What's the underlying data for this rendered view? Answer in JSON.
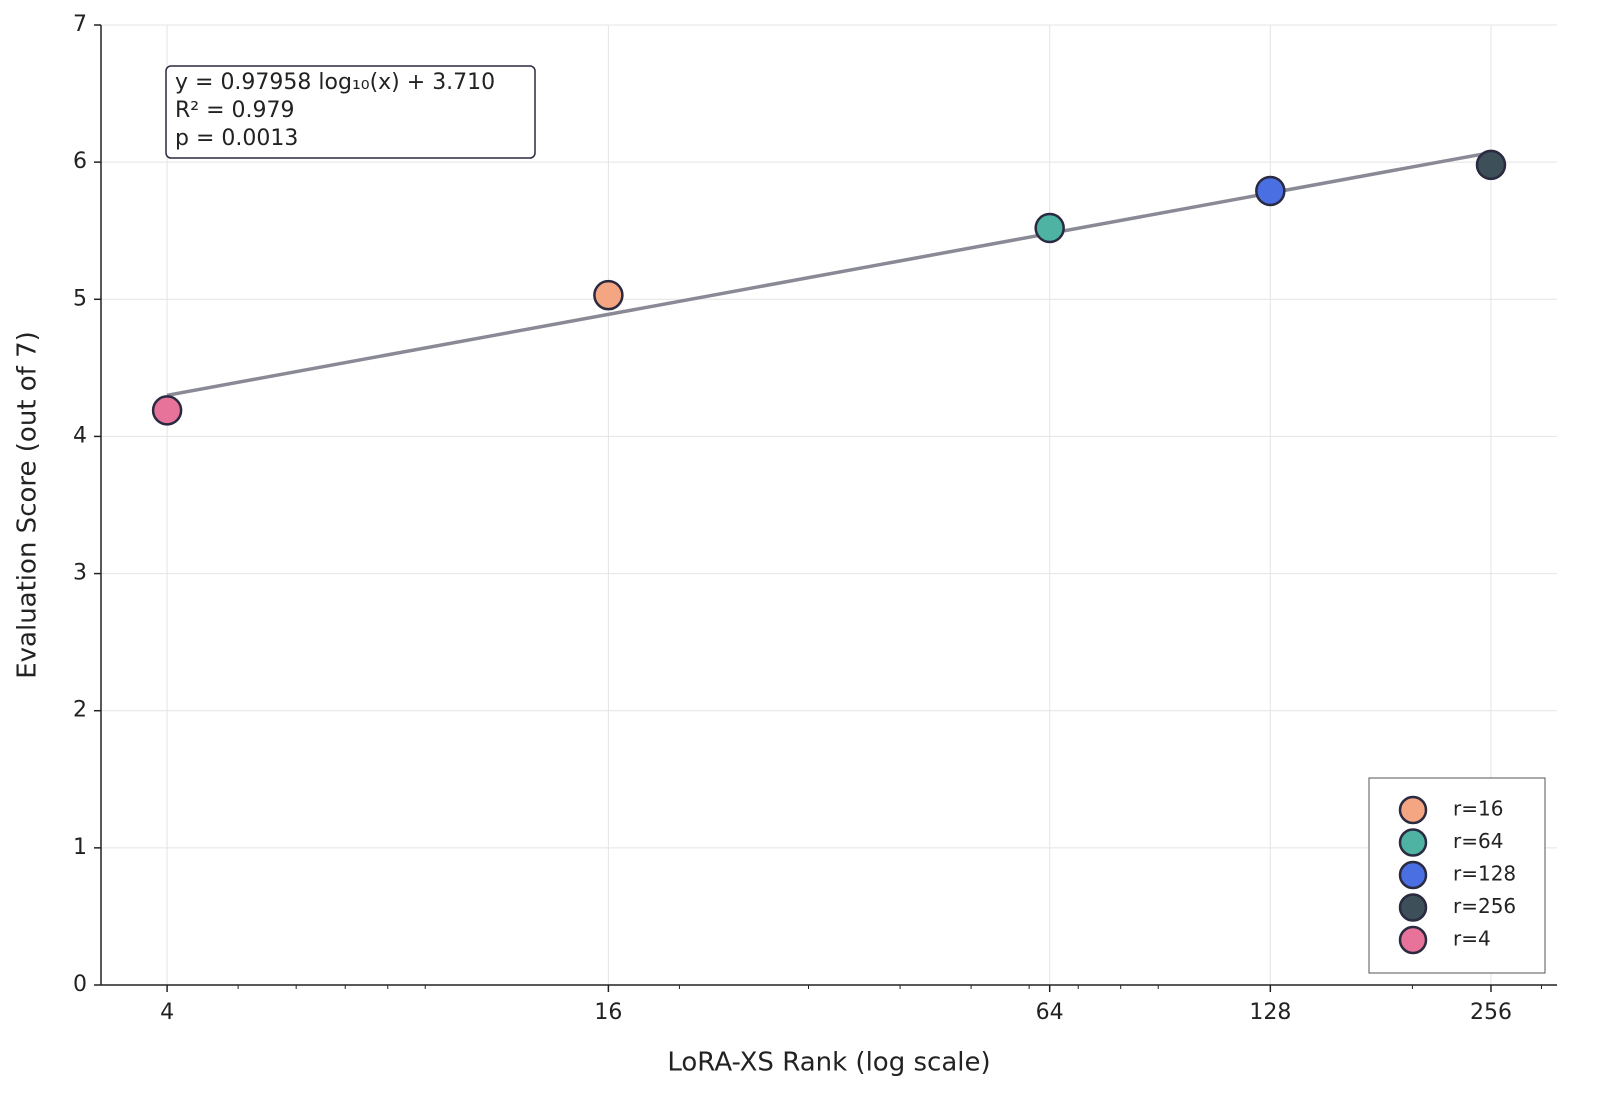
{
  "chart_data": {
    "type": "scatter",
    "xlabel": "LoRA-XS Rank (log scale)",
    "ylabel": "Evaluation Score (out of 7)",
    "xscale": "log",
    "xlim": [
      3.25,
      315
    ],
    "ylim": [
      0,
      7
    ],
    "xticks": [
      4,
      16,
      64,
      128,
      256
    ],
    "xminorticks": [
      5,
      6,
      7,
      8,
      9,
      20,
      30,
      40,
      50,
      60,
      70,
      80,
      90,
      200,
      300
    ],
    "yticks": [
      0,
      1,
      2,
      3,
      4,
      5,
      6,
      7
    ],
    "grid": true,
    "legend": "lower right",
    "annotation": [
      "y = 0.97958 log₁₀(x) + 3.710",
      "R² = 0.979",
      "p = 0.0013"
    ],
    "fit_line": {
      "x": [
        4,
        256
      ],
      "values": [
        4.3,
        6.07
      ],
      "color": "#8a8a96"
    },
    "series": [
      {
        "name": "r=16",
        "color": "#f4a582",
        "x": [
          16
        ],
        "values": [
          5.03
        ]
      },
      {
        "name": "r=64",
        "color": "#4fb3a4",
        "x": [
          64
        ],
        "values": [
          5.52
        ]
      },
      {
        "name": "r=128",
        "color": "#4a6fe3",
        "x": [
          128
        ],
        "values": [
          5.79
        ]
      },
      {
        "name": "r=256",
        "color": "#3d4f58",
        "x": [
          256
        ],
        "values": [
          5.98
        ]
      },
      {
        "name": "r=4",
        "color": "#e8739a",
        "x": [
          4
        ],
        "values": [
          4.19
        ]
      }
    ]
  }
}
